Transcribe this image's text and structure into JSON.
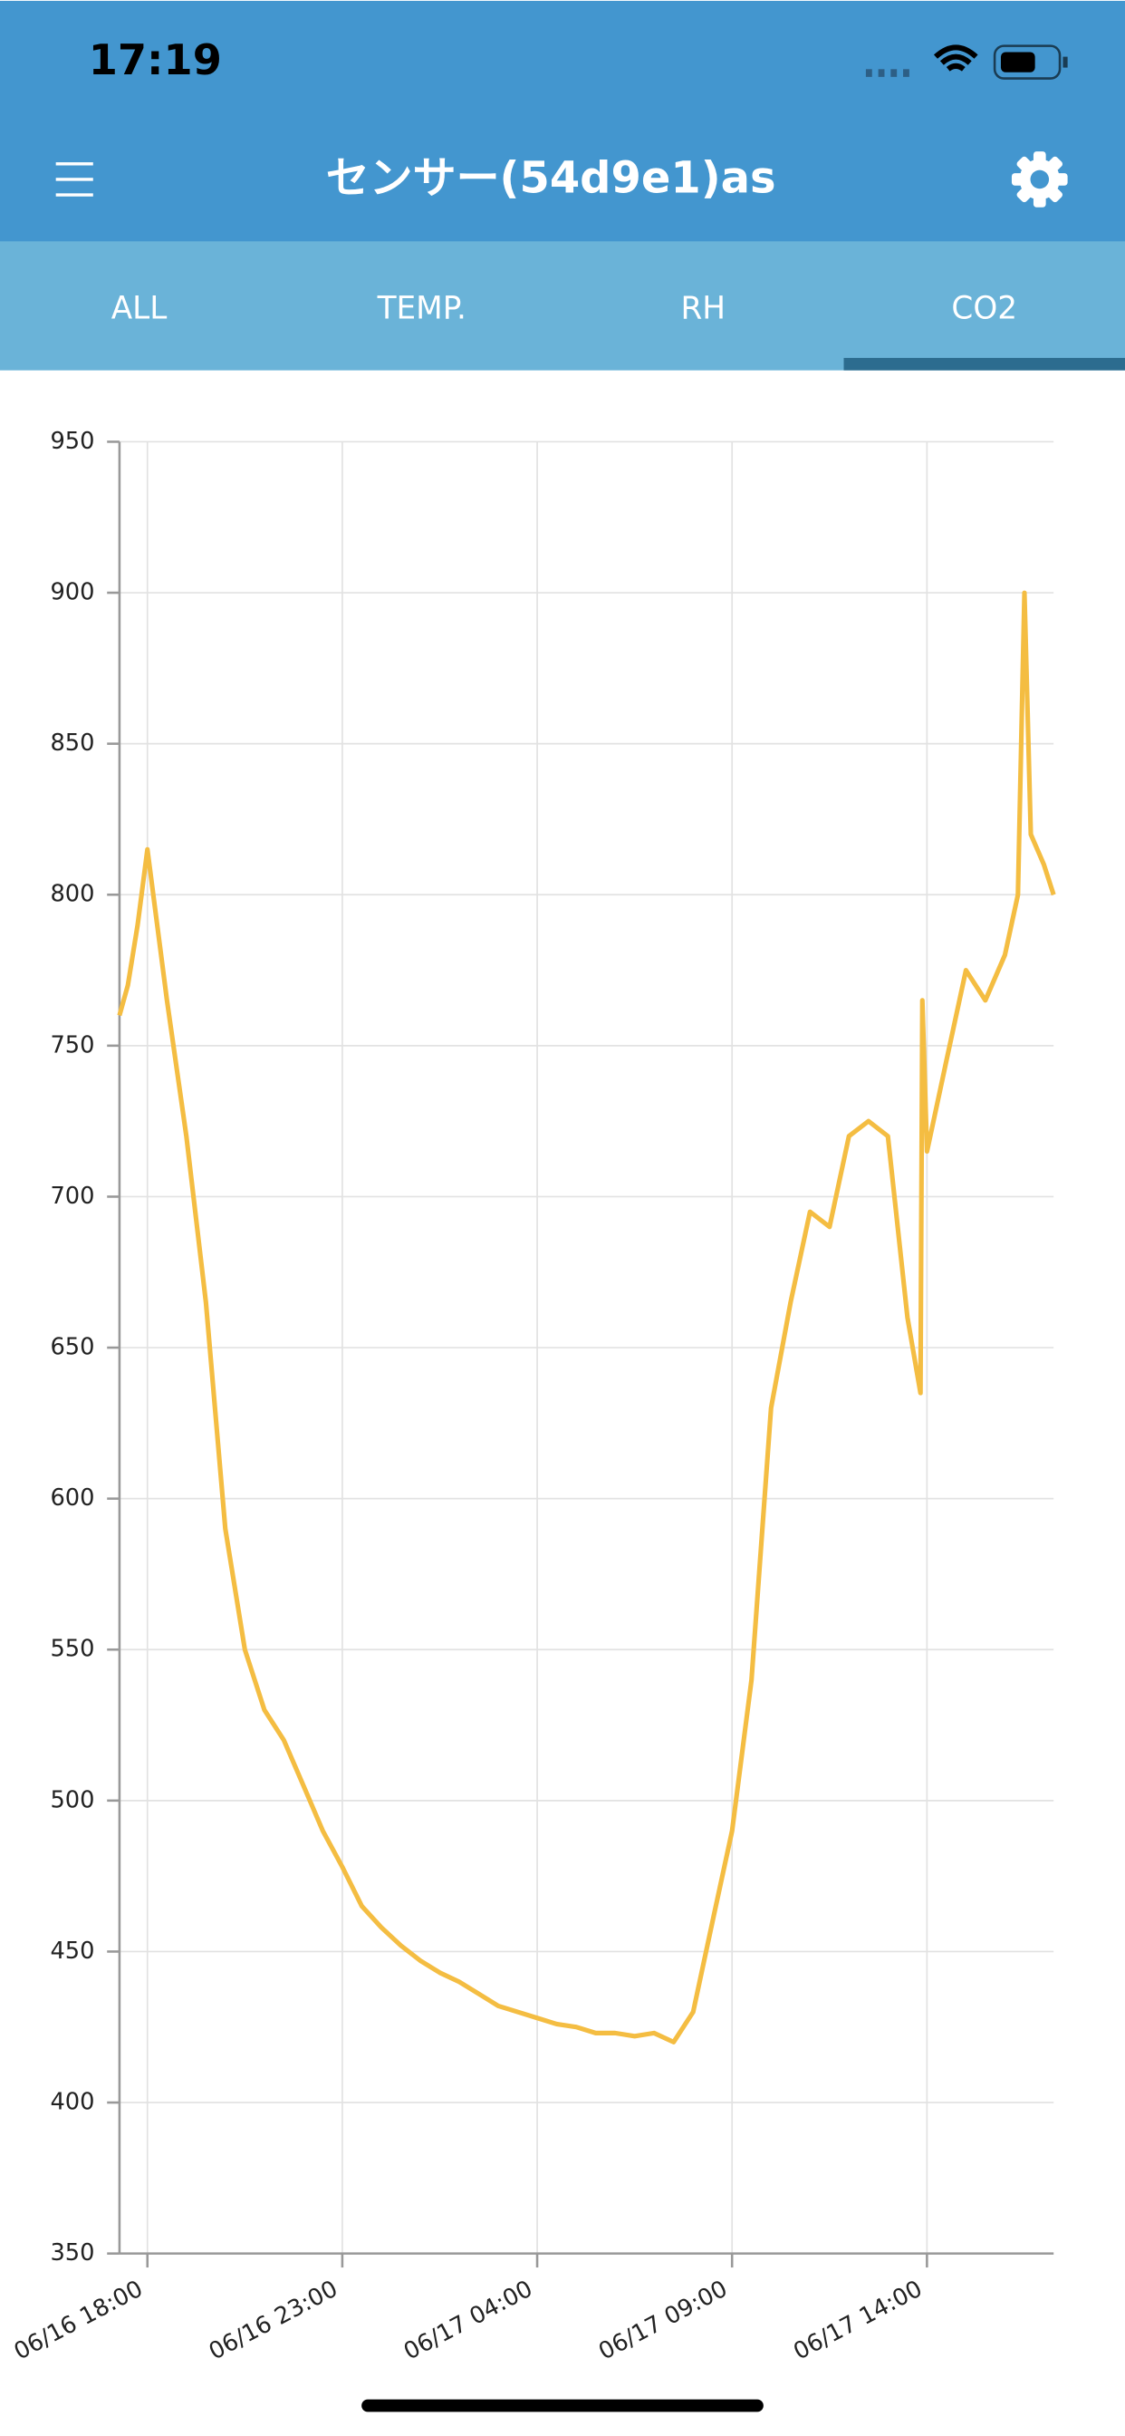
{
  "status_bar": {
    "time": "17:19"
  },
  "header": {
    "title": "センサー(54d9e1)as"
  },
  "tabs": [
    "ALL",
    "TEMP.",
    "RH",
    "CO2"
  ],
  "selected_tab": 3,
  "chart_data": {
    "type": "line",
    "color": "#f4bd42",
    "grid": true,
    "x": [
      "06/16 17:17",
      "06/16 17:30",
      "06/16 17:45",
      "06/16 18:00",
      "06/16 18:30",
      "06/16 19:00",
      "06/16 19:30",
      "06/16 20:00",
      "06/16 20:30",
      "06/16 21:00",
      "06/16 21:30",
      "06/16 22:00",
      "06/16 22:30",
      "06/16 23:00",
      "06/16 23:30",
      "06/17 00:00",
      "06/17 00:30",
      "06/17 01:00",
      "06/17 01:30",
      "06/17 02:00",
      "06/17 02:30",
      "06/17 03:00",
      "06/17 03:30",
      "06/17 04:00",
      "06/17 04:30",
      "06/17 05:00",
      "06/17 05:30",
      "06/17 06:00",
      "06/17 06:30",
      "06/17 07:00",
      "06/17 07:30",
      "06/17 08:00",
      "06/17 08:30",
      "06/17 09:00",
      "06/17 09:30",
      "06/17 10:00",
      "06/17 10:30",
      "06/17 11:00",
      "06/17 11:30",
      "06/17 12:00",
      "06/17 12:30",
      "06/17 13:00",
      "06/17 13:30",
      "06/17 13:50",
      "06/17 13:53",
      "06/17 14:00",
      "06/17 14:30",
      "06/17 15:00",
      "06/17 15:30",
      "06/17 16:00",
      "06/17 16:20",
      "06/17 16:30",
      "06/17 16:40",
      "06/17 17:00",
      "06/17 17:15"
    ],
    "values": [
      760,
      770,
      790,
      815,
      765,
      720,
      665,
      590,
      550,
      530,
      520,
      505,
      490,
      478,
      465,
      458,
      452,
      447,
      443,
      440,
      436,
      432,
      430,
      428,
      426,
      425,
      423,
      423,
      422,
      423,
      420,
      430,
      460,
      490,
      540,
      630,
      665,
      695,
      690,
      720,
      725,
      720,
      660,
      635,
      765,
      715,
      745,
      775,
      765,
      780,
      800,
      900,
      820,
      810,
      800
    ],
    "xlim": [
      "06/16 17:17",
      "06/17 17:15"
    ],
    "xticks": [
      "06/16 18:00",
      "06/16 23:00",
      "06/17 04:00",
      "06/17 09:00",
      "06/17 14:00"
    ],
    "ylim": [
      350,
      950
    ],
    "yticks": [
      350,
      400,
      450,
      500,
      550,
      600,
      650,
      700,
      750,
      800,
      850,
      900,
      950
    ]
  }
}
